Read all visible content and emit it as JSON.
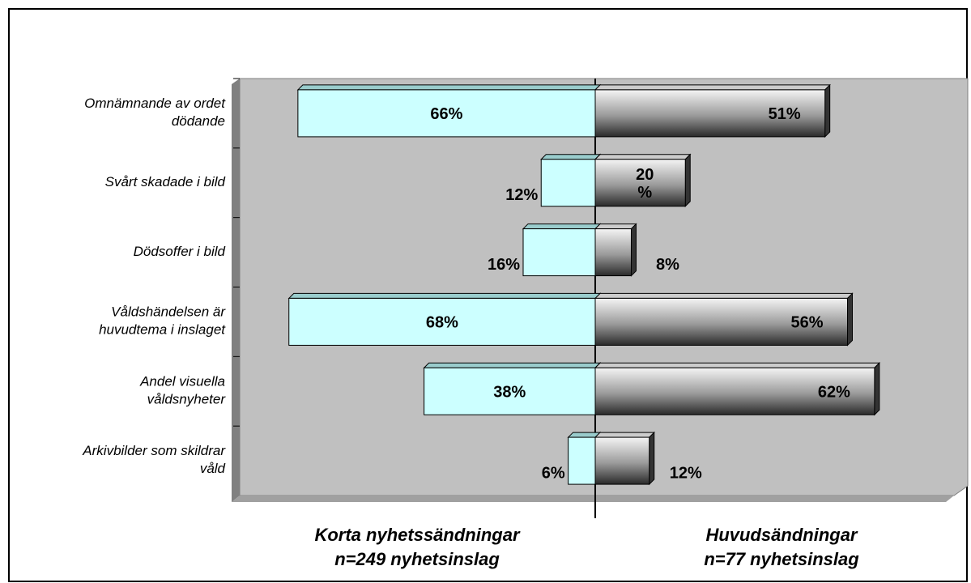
{
  "chart_data": {
    "type": "butterfly-bar",
    "categories": [
      "Omnämnande av ordet\ndödande",
      "Svårt skadade i bild",
      "Dödsoffer i bild",
      "Våldshändelsen är\nhuvudtema i inslaget",
      "Andel visuella\nvåldsnyheter",
      "Arkivbilder som skildrar\nvåld"
    ],
    "series": [
      {
        "name": "Korta nyhetssändningar\nn=249 nyhetsinslag",
        "color": "#ccffff",
        "values": [
          66,
          12,
          16,
          68,
          38,
          6
        ],
        "value_labels": [
          "66%",
          "12%",
          "16%",
          "68%",
          "38%",
          "6%"
        ]
      },
      {
        "name": "Huvudsändningar\nn=77 nyhetsinslag",
        "color": "#808080",
        "values": [
          51,
          20,
          8,
          56,
          62,
          12
        ],
        "value_labels": [
          "51%",
          "20\n%",
          "8%",
          "56%",
          "62%",
          "12%"
        ]
      }
    ],
    "xlim": [
      0,
      80
    ]
  }
}
